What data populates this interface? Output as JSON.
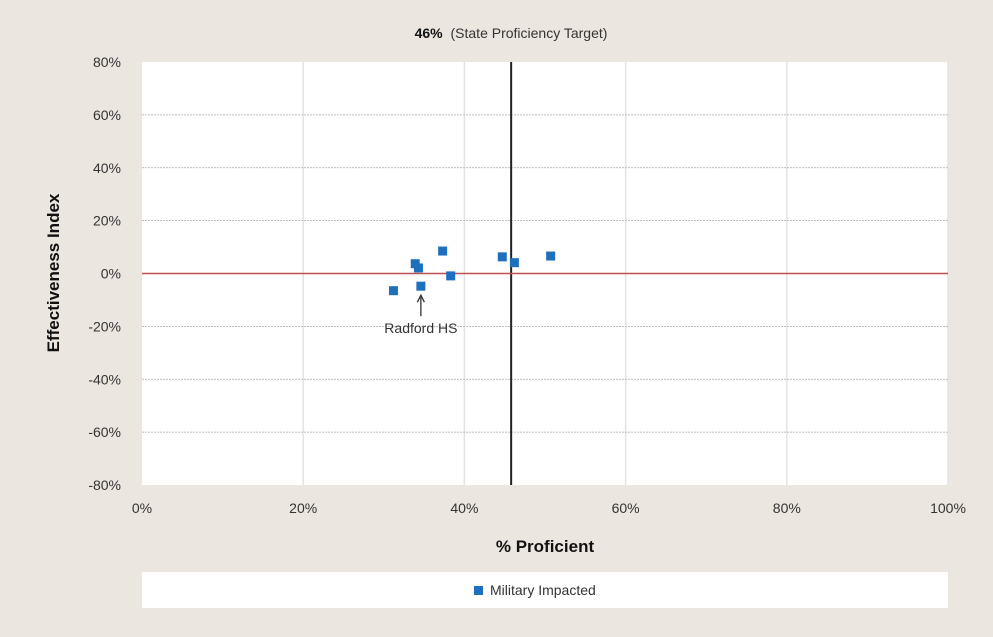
{
  "chart_data": {
    "type": "scatter",
    "xlabel": "% Proficient",
    "ylabel": "Effectiveness Index",
    "xlim": [
      0,
      100
    ],
    "ylim": [
      -80,
      80
    ],
    "x_ticks": [
      0,
      20,
      40,
      60,
      80,
      100
    ],
    "y_ticks": [
      80,
      60,
      40,
      20,
      0,
      -20,
      -40,
      -60,
      -80
    ],
    "x_tick_labels": [
      "0%",
      "20%",
      "40%",
      "60%",
      "80%",
      "100%"
    ],
    "y_tick_labels": [
      "80%",
      "60%",
      "40%",
      "20%",
      "0%",
      "-20%",
      "-40%",
      "-60%",
      "-80%"
    ],
    "grid": true,
    "legend_position": "bottom",
    "series": [
      {
        "name": "Military Impacted",
        "color": "#1f6fbf",
        "marker": "square",
        "points": [
          {
            "x": 31.2,
            "y": -6.5
          },
          {
            "x": 33.9,
            "y": 3.7
          },
          {
            "x": 34.3,
            "y": 2.1
          },
          {
            "x": 34.6,
            "y": -4.8
          },
          {
            "x": 37.3,
            "y": 8.5
          },
          {
            "x": 38.3,
            "y": -0.9
          },
          {
            "x": 44.7,
            "y": 6.3
          },
          {
            "x": 46.2,
            "y": 4.1
          },
          {
            "x": 50.7,
            "y": 6.6
          }
        ]
      }
    ],
    "reference_lines": [
      {
        "axis": "x",
        "value": 45.8,
        "color": "#222222",
        "label_bold": "46%",
        "label_rest": "(State Proficiency Target)"
      },
      {
        "axis": "y",
        "value": 0,
        "color": "#c0504d"
      }
    ],
    "annotations": [
      {
        "text": "Radford HS",
        "x": 34.6,
        "y": -4.8
      }
    ]
  }
}
